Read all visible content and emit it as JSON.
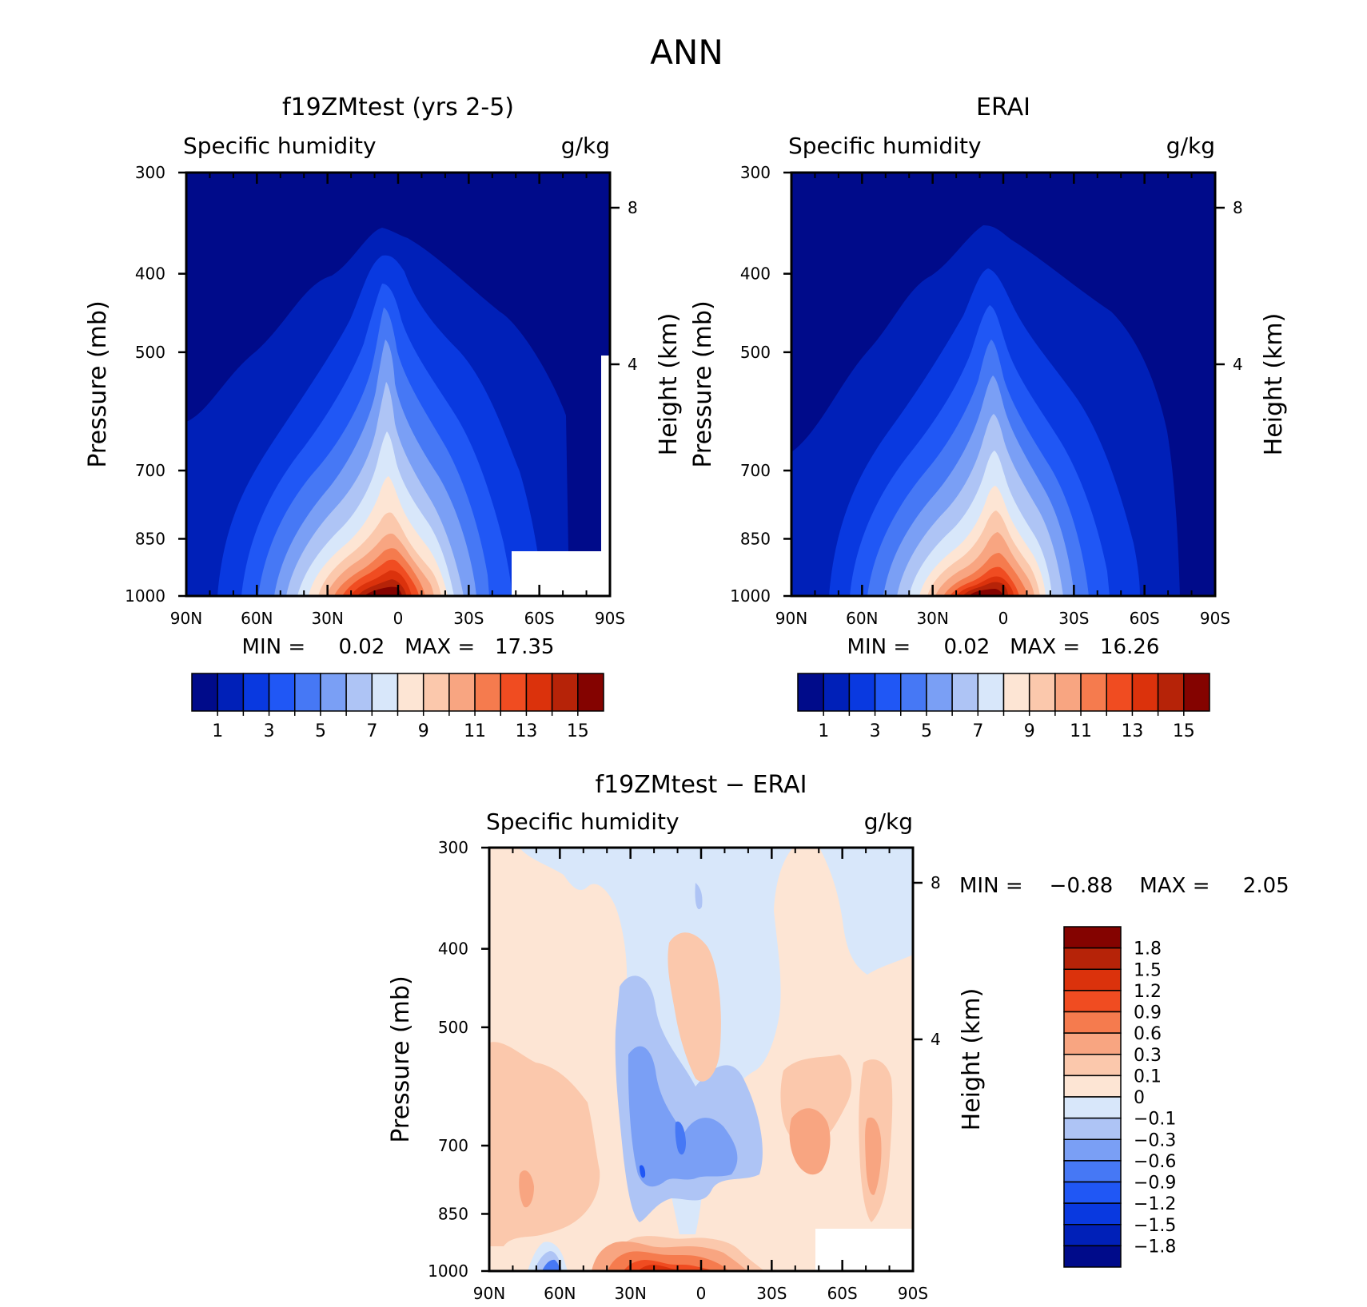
{
  "figure": {
    "title": "ANN"
  },
  "chart_data": [
    {
      "type": "contour",
      "id": "model",
      "title": "f19ZMtest (yrs 2-5)",
      "variable": "Specific humidity",
      "units": "g/kg",
      "ylabel": "Pressure (mb)",
      "y2label": "Height (km)",
      "x_ticks": [
        "90N",
        "60N",
        "30N",
        "0",
        "30S",
        "60S",
        "90S"
      ],
      "x_values": [
        90,
        60,
        30,
        0,
        -30,
        -60,
        -90
      ],
      "y_ticks": [
        300,
        400,
        500,
        700,
        850,
        1000
      ],
      "y2_ticks": [
        8,
        4
      ],
      "ylim": [
        1000,
        300
      ],
      "stats_text": "MIN =     0.02   MAX =   17.35",
      "min": 0.02,
      "max": 17.35,
      "contour_levels": [
        1,
        2,
        3,
        4,
        5,
        6,
        7,
        8,
        9,
        10,
        11,
        12,
        13,
        14,
        15
      ],
      "colorbar_labels": [
        "1",
        "3",
        "5",
        "7",
        "9",
        "11",
        "13",
        "15"
      ],
      "colors": [
        "#000b8a",
        "#0020b8",
        "#0939e0",
        "#2057f5",
        "#4678f5",
        "#7a9ff5",
        "#aec4f5",
        "#d8e7fa",
        "#fde5d4",
        "#fbc8ac",
        "#f8a581",
        "#f57b4e",
        "#f04c21",
        "#db320c",
        "#b62308",
        "#840300"
      ]
    },
    {
      "type": "contour",
      "id": "obs",
      "title": "ERAI",
      "variable": "Specific humidity",
      "units": "g/kg",
      "ylabel": "Pressure (mb)",
      "y2label": "Height (km)",
      "x_ticks": [
        "90N",
        "60N",
        "30N",
        "0",
        "30S",
        "60S",
        "90S"
      ],
      "x_values": [
        90,
        60,
        30,
        0,
        -30,
        -60,
        -90
      ],
      "y_ticks": [
        300,
        400,
        500,
        700,
        850,
        1000
      ],
      "y2_ticks": [
        8,
        4
      ],
      "ylim": [
        1000,
        300
      ],
      "stats_text": "MIN =     0.02   MAX =   16.26",
      "min": 0.02,
      "max": 16.26,
      "contour_levels": [
        1,
        2,
        3,
        4,
        5,
        6,
        7,
        8,
        9,
        10,
        11,
        12,
        13,
        14,
        15
      ],
      "colorbar_labels": [
        "1",
        "3",
        "5",
        "7",
        "9",
        "11",
        "13",
        "15"
      ],
      "colors": [
        "#000b8a",
        "#0020b8",
        "#0939e0",
        "#2057f5",
        "#4678f5",
        "#7a9ff5",
        "#aec4f5",
        "#d8e7fa",
        "#fde5d4",
        "#fbc8ac",
        "#f8a581",
        "#f57b4e",
        "#f04c21",
        "#db320c",
        "#b62308",
        "#840300"
      ]
    },
    {
      "type": "contour",
      "id": "diff",
      "title": "f19ZMtest − ERAI",
      "variable": "Specific humidity",
      "units": "g/kg",
      "ylabel": "Pressure (mb)",
      "y2label": "Height (km)",
      "x_ticks": [
        "90N",
        "60N",
        "30N",
        "0",
        "30S",
        "60S",
        "90S"
      ],
      "x_values": [
        90,
        60,
        30,
        0,
        -30,
        -60,
        -90
      ],
      "y_ticks": [
        300,
        400,
        500,
        700,
        850,
        1000
      ],
      "y2_ticks": [
        8,
        4
      ],
      "ylim": [
        1000,
        300
      ],
      "stats_text": "MIN =    −0.88    MAX =     2.05",
      "min": -0.88,
      "max": 2.05,
      "colorbar_labels": [
        "1.8",
        "1.5",
        "1.2",
        "0.9",
        "0.6",
        "0.3",
        "0.1",
        "0",
        "−0.1",
        "−0.3",
        "−0.6",
        "−0.9",
        "−1.2",
        "−1.5",
        "−1.8"
      ],
      "colors_top_to_bottom": [
        "#840300",
        "#b62308",
        "#db320c",
        "#f04c21",
        "#f57b4e",
        "#f8a581",
        "#fbc8ac",
        "#fde5d4",
        "#d8e7fa",
        "#aec4f5",
        "#7a9ff5",
        "#4678f5",
        "#2057f5",
        "#0939e0",
        "#0020b8",
        "#000b8a"
      ]
    }
  ]
}
